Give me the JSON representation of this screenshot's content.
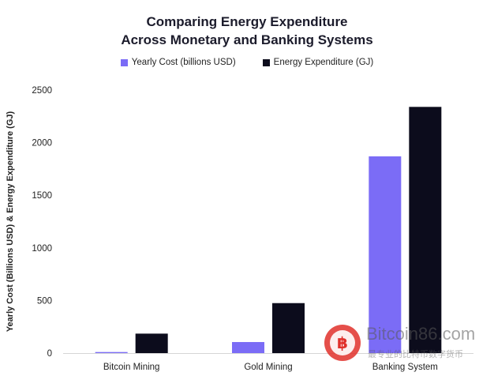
{
  "chart_data": {
    "type": "bar",
    "title_lines": [
      "Comparing Energy Expenditure",
      "Across Monetary and Banking Systems"
    ],
    "xlabel": "",
    "ylabel": "Yearly Cost (Billions USD) & Energy Expenditure (GJ)",
    "categories": [
      "Bitcoin Mining",
      "Gold Mining",
      "Banking System"
    ],
    "series": [
      {
        "name": "Yearly Cost (billions USD)",
        "color": "#7b6cf6",
        "values": [
          10,
          105,
          1870
        ]
      },
      {
        "name": "Energy Expenditure (GJ)",
        "color": "#0c0c1c",
        "values": [
          185,
          475,
          2340
        ]
      }
    ],
    "ylim": [
      0,
      2500
    ],
    "yticks": [
      0,
      500,
      1000,
      1500,
      2000,
      2500
    ],
    "grid": false,
    "legend_position": "top-center"
  },
  "watermark": {
    "text": "Bitcoin86.com",
    "subtext": "最专业的比特币数字货币",
    "logo_color": "#e0302a"
  }
}
